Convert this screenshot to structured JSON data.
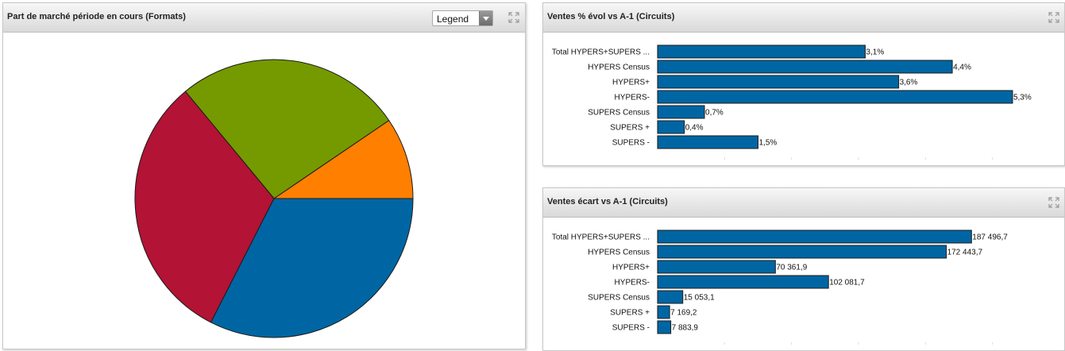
{
  "panels": {
    "pie": {
      "title": "Part de marché période en cours (Formats)",
      "legend_select": {
        "label": "Legend"
      }
    },
    "evol": {
      "title": "Ventes % évol vs A-1 (Circuits)"
    },
    "ecart": {
      "title": "Ventes écart vs A-1 (Circuits)"
    }
  },
  "chart_data": [
    {
      "type": "pie",
      "title": "Part de marché période en cours (Formats)",
      "values": [
        9.5,
        26.5,
        31.5,
        32.5
      ],
      "colors": [
        "#ff7f00",
        "#749a00",
        "#b31335",
        "#0066a3"
      ],
      "start_direction": "3 o'clock",
      "direction": "counter-clockwise",
      "slice_labels": false
    },
    {
      "type": "bar",
      "orientation": "horizontal",
      "title": "Ventes % évol vs A-1 (Circuits)",
      "categories": [
        "Total HYPERS+SUPERS ...",
        "HYPERS Census",
        "HYPERS+",
        "HYPERS-",
        "SUPERS Census",
        "SUPERS +",
        "SUPERS -"
      ],
      "values": [
        3.1,
        4.4,
        3.6,
        5.3,
        0.7,
        0.4,
        1.5
      ],
      "value_labels": [
        "3,1%",
        "4,4%",
        "3,6%",
        "5,3%",
        "0,7%",
        "0,4%",
        "1,5%"
      ],
      "xlim": [
        0,
        6
      ],
      "bar_color": "#0066a3"
    },
    {
      "type": "bar",
      "orientation": "horizontal",
      "title": "Ventes écart vs A-1 (Circuits)",
      "categories": [
        "Total HYPERS+SUPERS ...",
        "HYPERS Census",
        "HYPERS+",
        "HYPERS-",
        "SUPERS Census",
        "SUPERS +",
        "SUPERS -"
      ],
      "values": [
        187496.7,
        172443.7,
        70361.9,
        102081.7,
        15053.1,
        7169.2,
        7883.9
      ],
      "value_labels": [
        "187 496,7",
        "172 443,7",
        "70 361,9",
        "102 081,7",
        "15 053,1",
        "7 169,2",
        "7 883,9"
      ],
      "xlim": [
        0,
        240000
      ],
      "bar_color": "#0066a3"
    }
  ]
}
